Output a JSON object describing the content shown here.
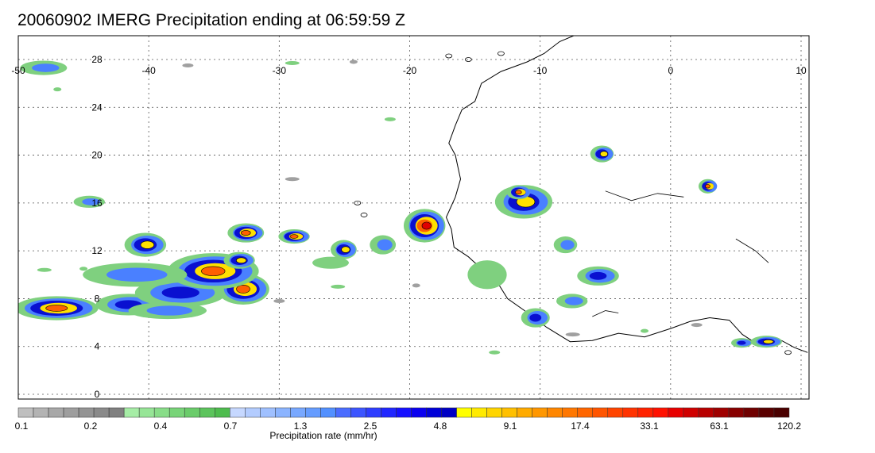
{
  "title": "20060902 IMERG Precipitation ending at 06:59:59 Z",
  "map": {
    "lon_range": [
      -50,
      10
    ],
    "lat_range": [
      -0.5,
      30.5
    ],
    "lon_ticks": [
      "-50",
      "-40",
      "-30",
      "-20",
      "-10",
      "0",
      "10"
    ],
    "lon_tick_values": [
      -50,
      -40,
      -30,
      -20,
      -10,
      0,
      10
    ],
    "lat_ticks": [
      "28",
      "24",
      "20",
      "16",
      "12",
      "8",
      "4",
      "0"
    ],
    "lat_tick_values": [
      28,
      24,
      20,
      16,
      12,
      8,
      4,
      0
    ],
    "gridlines": true,
    "coastline_color": "#000000"
  },
  "colorbar": {
    "units_label": "Precipitation rate (mm/hr)",
    "labels": [
      "0.1",
      "0.2",
      "0.4",
      "0.7",
      "1.3",
      "2.5",
      "4.8",
      "9.1",
      "17.4",
      "33.1",
      "63.1",
      "120.2"
    ],
    "colors": [
      "#bfbfbf",
      "#b3b3b3",
      "#a8a8a8",
      "#9e9e9e",
      "#949494",
      "#8a8a8a",
      "#808080",
      "#a6eda6",
      "#96e596",
      "#88dd88",
      "#78d478",
      "#6acc6a",
      "#5cc45c",
      "#4ebc4e",
      "#c6d8ff",
      "#b3ccff",
      "#9fc0ff",
      "#8bb4ff",
      "#78a8ff",
      "#659cff",
      "#5290ff",
      "#4a6cff",
      "#3c55ff",
      "#2e3dff",
      "#2026ff",
      "#1510ff",
      "#0a00f0",
      "#0000d8",
      "#0000c4",
      "#ffff00",
      "#ffea00",
      "#ffd500",
      "#ffc000",
      "#ffab00",
      "#ff9700",
      "#ff8600",
      "#ff7700",
      "#ff6600",
      "#ff5500",
      "#ff4400",
      "#ff3300",
      "#ff2200",
      "#ff1100",
      "#e80000",
      "#d00000",
      "#b80000",
      "#a00000",
      "#880000",
      "#700000",
      "#5a0000",
      "#4a0000"
    ]
  },
  "legend_colors": {
    "light": "#7fd07f",
    "moderate": "#4a80ff",
    "heavy": "#0a10d0",
    "very_heavy": "#ffe000",
    "extreme": "#ff6000",
    "peak": "#e00000"
  }
}
